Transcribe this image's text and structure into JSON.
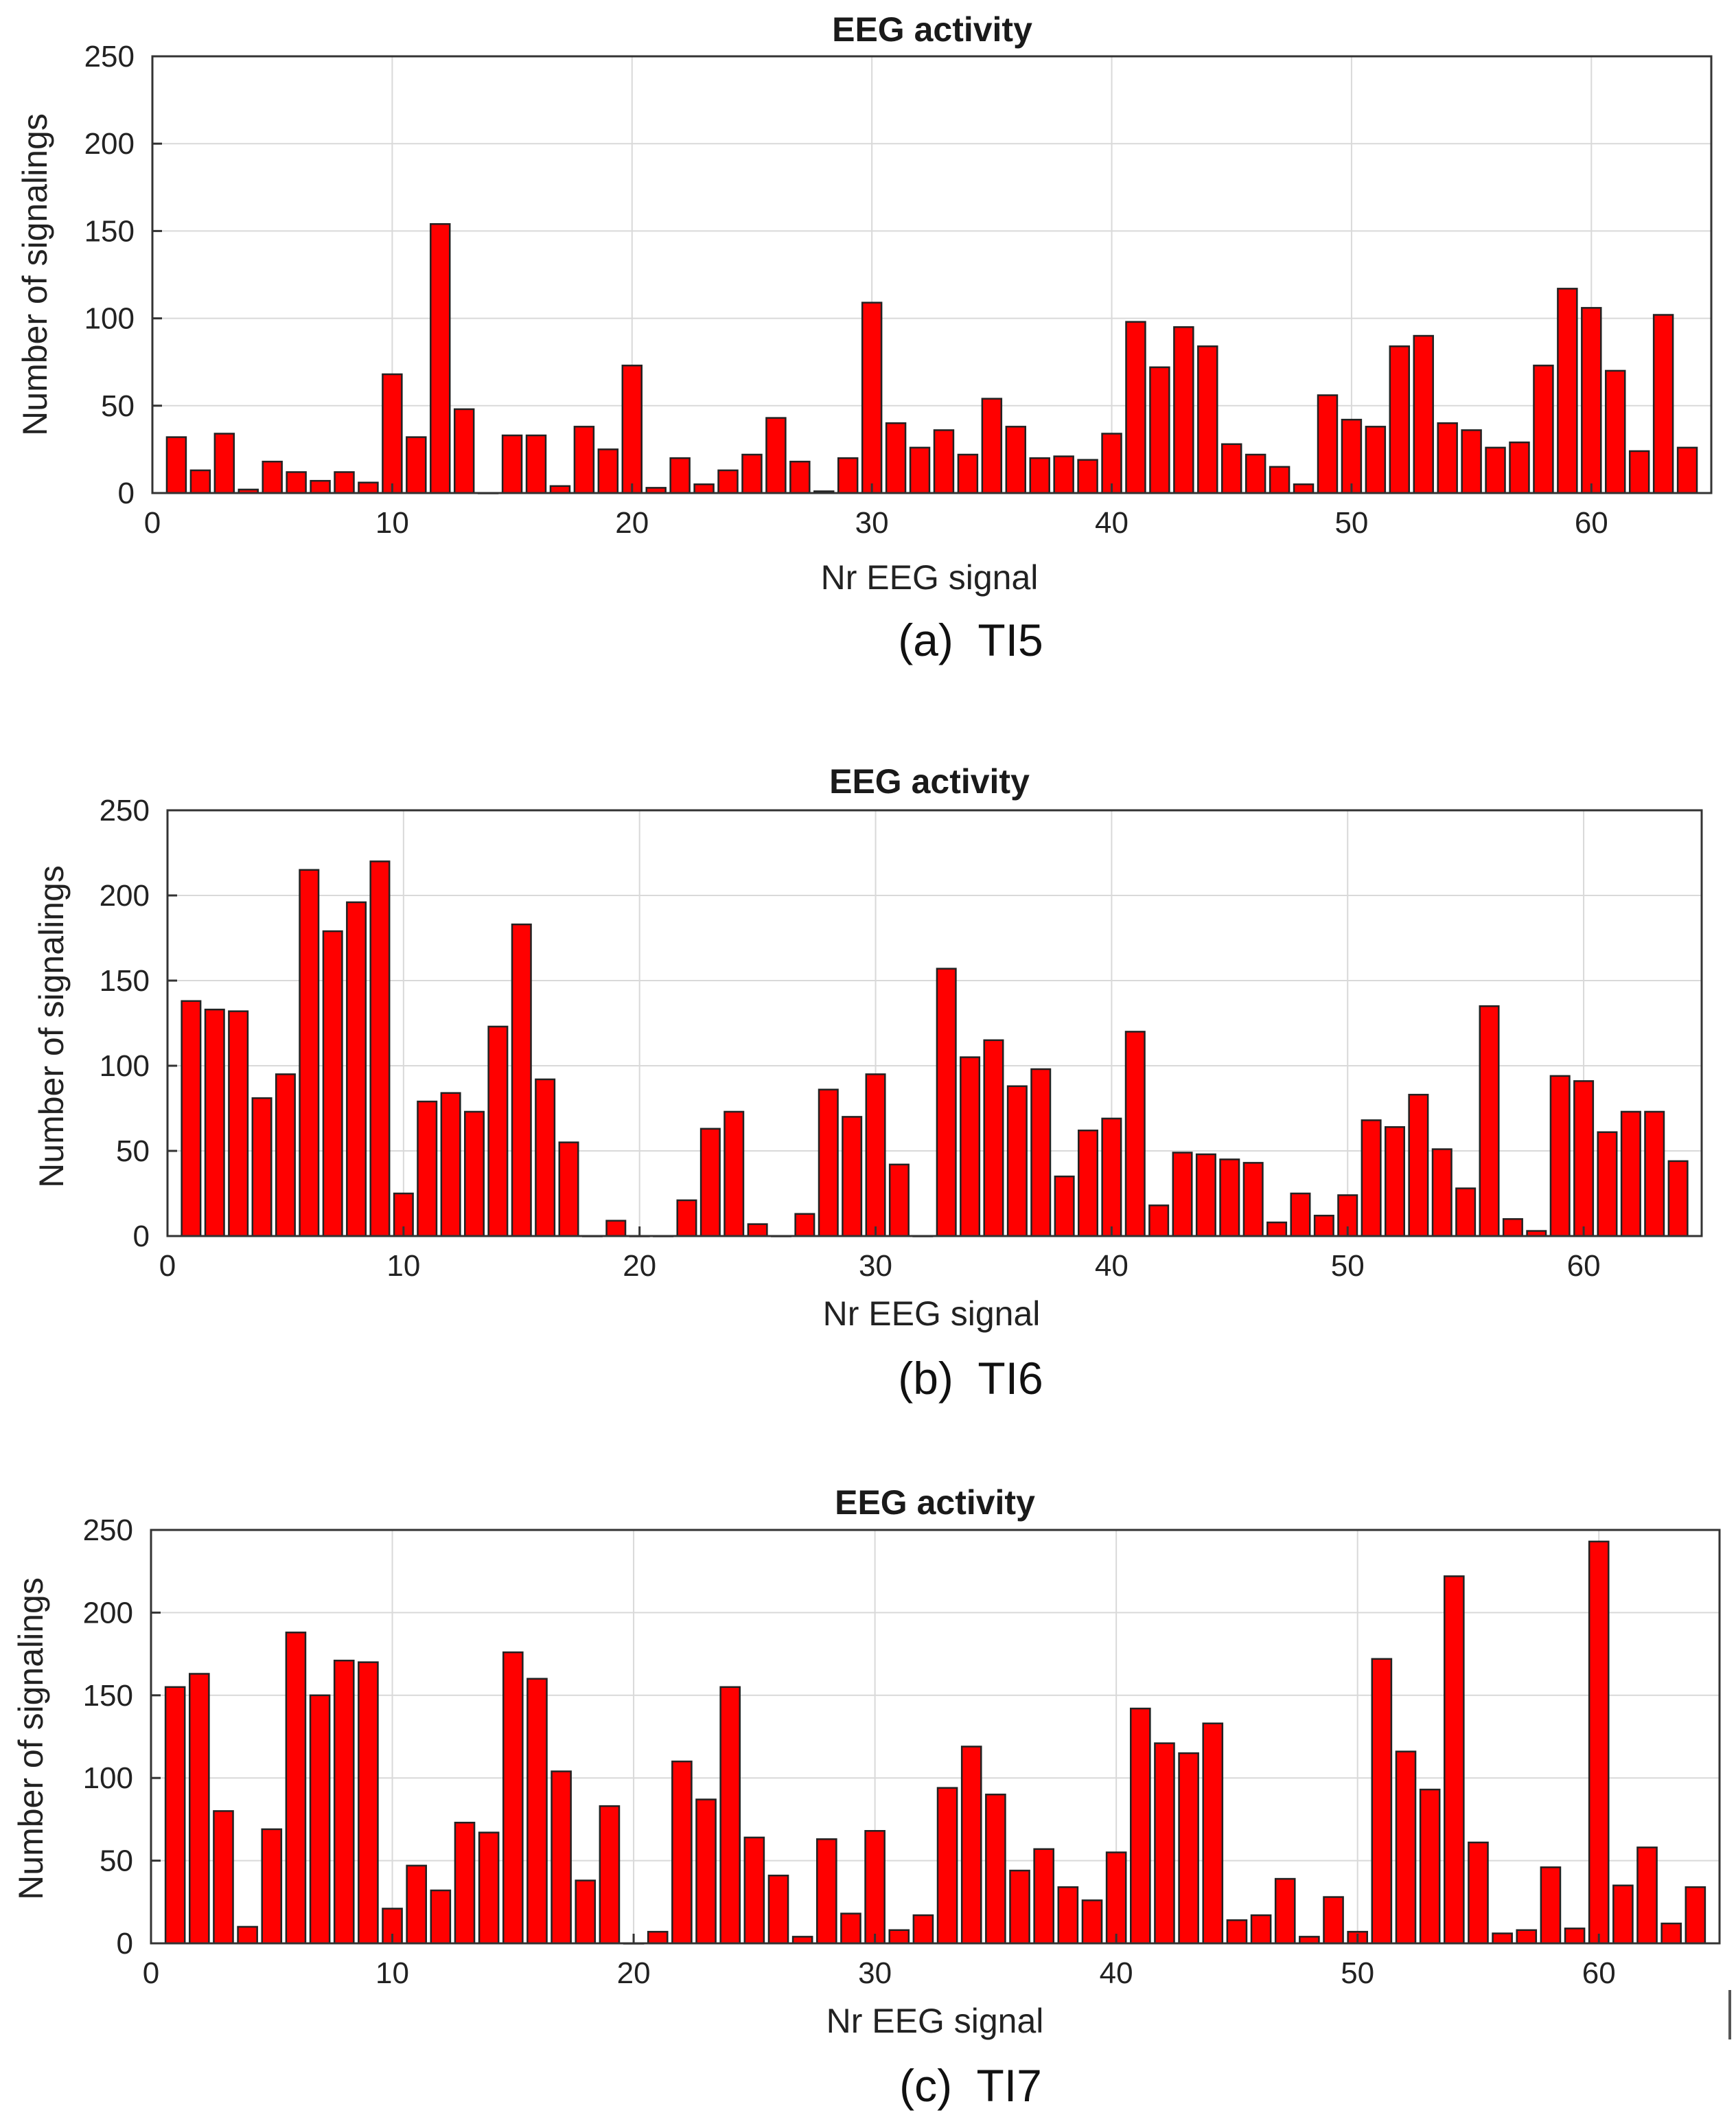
{
  "bar_color": "#ff0000",
  "chart_data": [
    {
      "type": "bar",
      "title": "EEG activity",
      "xlabel": "Nr EEG signal",
      "ylabel": "Number of signalings",
      "caption": "(a)  TI5",
      "xlim": [
        0,
        65
      ],
      "ylim": [
        0,
        250
      ],
      "xticks": [
        0,
        10,
        20,
        30,
        40,
        50,
        60
      ],
      "yticks": [
        0,
        50,
        100,
        150,
        200,
        250
      ],
      "grid": true,
      "x": [
        1,
        2,
        3,
        4,
        5,
        6,
        7,
        8,
        9,
        10,
        11,
        12,
        13,
        14,
        15,
        16,
        17,
        18,
        19,
        20,
        21,
        22,
        23,
        24,
        25,
        26,
        27,
        28,
        29,
        30,
        31,
        32,
        33,
        34,
        35,
        36,
        37,
        38,
        39,
        40,
        41,
        42,
        43,
        44,
        45,
        46,
        47,
        48,
        49,
        50,
        51,
        52,
        53,
        54,
        55,
        56,
        57,
        58,
        59,
        60,
        61,
        62,
        63,
        64
      ],
      "values": [
        32,
        13,
        34,
        2,
        18,
        12,
        7,
        12,
        6,
        68,
        32,
        154,
        48,
        0,
        33,
        33,
        4,
        38,
        25,
        73,
        3,
        20,
        5,
        13,
        22,
        43,
        18,
        1,
        20,
        109,
        40,
        26,
        36,
        22,
        54,
        38,
        20,
        21,
        19,
        34,
        98,
        72,
        95,
        84,
        28,
        22,
        15,
        5,
        56,
        42,
        38,
        84,
        90,
        40,
        36,
        26,
        29,
        73,
        117,
        106,
        70,
        24,
        102,
        26
      ]
    },
    {
      "type": "bar",
      "title": "EEG activity",
      "xlabel": "Nr EEG signal",
      "ylabel": "Number of signalings",
      "caption": "(b)  TI6",
      "xlim": [
        0,
        65
      ],
      "ylim": [
        0,
        250
      ],
      "xticks": [
        0,
        10,
        20,
        30,
        40,
        50,
        60
      ],
      "yticks": [
        0,
        50,
        100,
        150,
        200,
        250
      ],
      "grid": true,
      "x": [
        1,
        2,
        3,
        4,
        5,
        6,
        7,
        8,
        9,
        10,
        11,
        12,
        13,
        14,
        15,
        16,
        17,
        18,
        19,
        20,
        21,
        22,
        23,
        24,
        25,
        26,
        27,
        28,
        29,
        30,
        31,
        32,
        33,
        34,
        35,
        36,
        37,
        38,
        39,
        40,
        41,
        42,
        43,
        44,
        45,
        46,
        47,
        48,
        49,
        50,
        51,
        52,
        53,
        54,
        55,
        56,
        57,
        58,
        59,
        60,
        61,
        62,
        63,
        64
      ],
      "values": [
        138,
        133,
        132,
        81,
        95,
        215,
        179,
        196,
        220,
        25,
        79,
        84,
        73,
        123,
        183,
        92,
        55,
        0,
        9,
        0,
        0,
        21,
        63,
        73,
        7,
        0,
        13,
        86,
        70,
        95,
        42,
        0,
        157,
        105,
        115,
        88,
        98,
        35,
        62,
        69,
        120,
        18,
        49,
        48,
        45,
        43,
        8,
        25,
        12,
        24,
        68,
        64,
        83,
        51,
        28,
        135,
        10,
        3,
        94,
        91,
        61,
        73,
        73,
        44
      ]
    },
    {
      "type": "bar",
      "title": "EEG activity",
      "xlabel": "Nr EEG signal",
      "ylabel": "Number of signalings",
      "caption": "(c)  TI7",
      "xlim": [
        0,
        65
      ],
      "ylim": [
        0,
        250
      ],
      "xticks": [
        0,
        10,
        20,
        30,
        40,
        50,
        60
      ],
      "yticks": [
        0,
        50,
        100,
        150,
        200,
        250
      ],
      "grid": true,
      "x": [
        1,
        2,
        3,
        4,
        5,
        6,
        7,
        8,
        9,
        10,
        11,
        12,
        13,
        14,
        15,
        16,
        17,
        18,
        19,
        20,
        21,
        22,
        23,
        24,
        25,
        26,
        27,
        28,
        29,
        30,
        31,
        32,
        33,
        34,
        35,
        36,
        37,
        38,
        39,
        40,
        41,
        42,
        43,
        44,
        45,
        46,
        47,
        48,
        49,
        50,
        51,
        52,
        53,
        54,
        55,
        56,
        57,
        58,
        59,
        60,
        61,
        62,
        63,
        64
      ],
      "values": [
        155,
        163,
        80,
        10,
        69,
        188,
        150,
        171,
        170,
        21,
        47,
        32,
        73,
        67,
        176,
        160,
        104,
        38,
        83,
        0,
        7,
        110,
        87,
        155,
        64,
        41,
        4,
        63,
        18,
        68,
        8,
        17,
        94,
        119,
        90,
        44,
        57,
        34,
        26,
        55,
        142,
        121,
        115,
        133,
        14,
        17,
        39,
        4,
        28,
        7,
        172,
        116,
        93,
        222,
        61,
        6,
        8,
        46,
        9,
        243,
        35,
        58,
        12,
        34
      ]
    }
  ]
}
